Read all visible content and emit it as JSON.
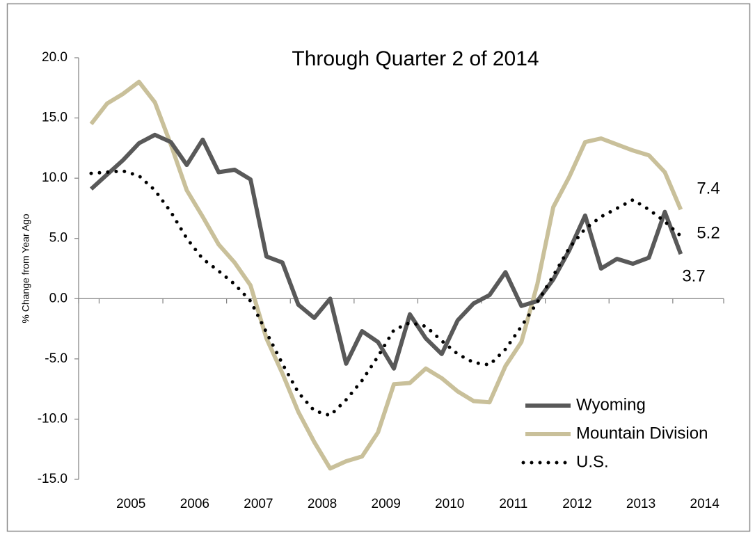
{
  "chart_data": {
    "type": "line",
    "title": "Through Quarter 2 of 2014",
    "y_label": "% Change from Year Ago",
    "xticklabels": [
      "2005",
      "2006",
      "2007",
      "2008",
      "2009",
      "2010",
      "2011",
      "2012",
      "2013",
      "2014"
    ],
    "ylim": [
      -15,
      20
    ],
    "yticks": [
      {
        "value": -15,
        "label": "-15.0"
      },
      {
        "value": -10,
        "label": "-10.0"
      },
      {
        "value": -5,
        "label": "-5.0"
      },
      {
        "value": 0,
        "label": "0.0"
      },
      {
        "value": 5,
        "label": "5.0"
      },
      {
        "value": 10,
        "label": "10.0"
      },
      {
        "value": 15,
        "label": "15.0"
      },
      {
        "value": 20,
        "label": "20.0"
      }
    ],
    "series": [
      {
        "name": "Wyoming",
        "color": "#595959",
        "style": "solid",
        "values": [
          9.1,
          10.3,
          11.5,
          12.9,
          13.6,
          13.0,
          11.1,
          13.2,
          10.5,
          10.7,
          9.9,
          3.5,
          3.0,
          -0.5,
          -1.6,
          0.0,
          -5.4,
          -2.7,
          -3.6,
          -5.8,
          -1.3,
          -3.3,
          -4.6,
          -1.8,
          -0.4,
          0.3,
          2.2,
          -0.6,
          -0.2,
          1.6,
          4.0,
          6.9,
          2.5,
          3.3,
          2.9,
          3.4,
          7.2,
          3.7
        ]
      },
      {
        "name": "Mountain Division",
        "color": "#c9c09a",
        "style": "solid",
        "values": [
          14.5,
          16.2,
          17.0,
          18.0,
          16.3,
          12.8,
          9.0,
          6.8,
          4.5,
          3.0,
          1.1,
          -3.3,
          -6.2,
          -9.4,
          -11.9,
          -14.1,
          -13.5,
          -13.1,
          -11.1,
          -7.1,
          -7.0,
          -5.8,
          -6.6,
          -7.7,
          -8.5,
          -8.6,
          -5.6,
          -3.6,
          1.2,
          7.6,
          10.1,
          13.0,
          13.3,
          12.8,
          12.3,
          11.9,
          10.5,
          7.4
        ]
      },
      {
        "name": "U.S.",
        "color": "#000000",
        "style": "dotted",
        "values": [
          10.4,
          10.5,
          10.6,
          10.2,
          9.0,
          7.2,
          5.0,
          3.3,
          2.3,
          1.2,
          -0.2,
          -2.8,
          -5.4,
          -7.8,
          -9.3,
          -9.7,
          -8.4,
          -6.8,
          -4.8,
          -2.6,
          -2.0,
          -2.3,
          -3.5,
          -4.6,
          -5.3,
          -5.5,
          -4.2,
          -2.3,
          -0.3,
          1.9,
          4.2,
          5.8,
          6.8,
          7.5,
          8.2,
          7.4,
          6.4,
          5.2
        ]
      }
    ]
  }
}
